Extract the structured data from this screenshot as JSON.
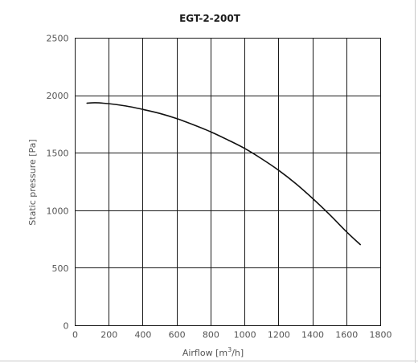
{
  "chart_data": {
    "type": "line",
    "title": "EGT-2-200T",
    "xlabel": "Airflow [m",
    "xlabel_superscript": "3",
    "xlabel_suffix": "/h]",
    "ylabel": "Static pressure [Pa]",
    "xlim": [
      0,
      1800
    ],
    "ylim": [
      0,
      2500
    ],
    "xticks": [
      0,
      200,
      400,
      600,
      800,
      1000,
      1200,
      1400,
      1600,
      1800
    ],
    "yticks": [
      0,
      500,
      1000,
      1500,
      2000,
      2500
    ],
    "grid": true,
    "legend": "none",
    "series": [
      {
        "color": "#111111",
        "x": [
          70,
          120,
          200,
          300,
          400,
          500,
          600,
          700,
          800,
          900,
          1000,
          1100,
          1200,
          1300,
          1400,
          1500,
          1600,
          1680
        ],
        "y": [
          1935,
          1938,
          1930,
          1910,
          1880,
          1845,
          1800,
          1745,
          1685,
          1615,
          1540,
          1450,
          1350,
          1235,
          1105,
          965,
          815,
          705
        ]
      }
    ]
  }
}
